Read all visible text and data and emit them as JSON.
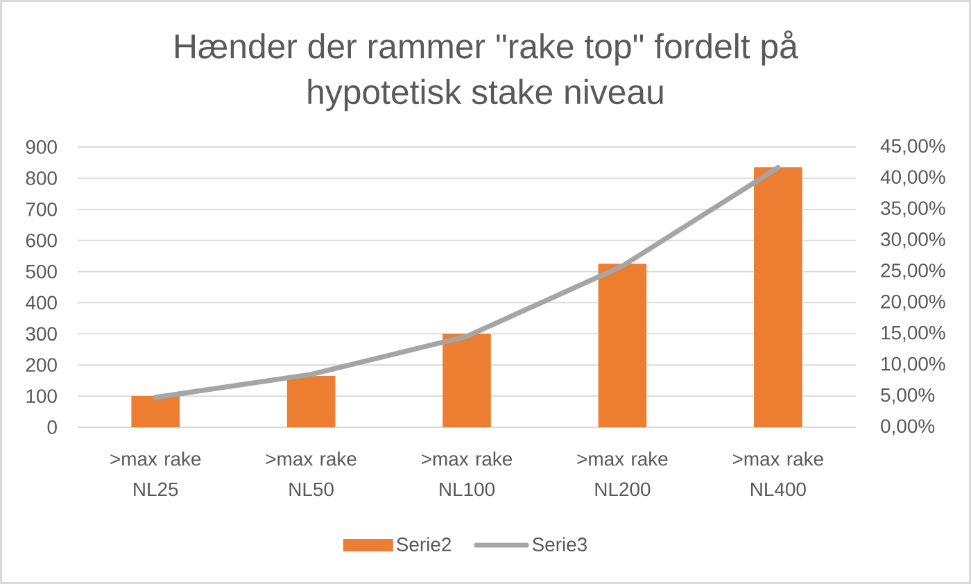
{
  "chart_data": {
    "type": "bar",
    "title": "Hænder der rammer \"rake top\" fordelt på hypotetisk stake niveau",
    "categories": [
      ">max rake NL25",
      ">max rake NL50",
      ">max rake NL100",
      ">max rake NL200",
      ">max rake NL400"
    ],
    "series": [
      {
        "name": "Serie2",
        "color": "#ed7d31",
        "values": [
          100,
          165,
          300,
          525,
          835
        ]
      },
      {
        "name": "Serie3",
        "type": "line",
        "axis": "y2",
        "color": "#a5a5a5",
        "values": [
          4.8,
          8.5,
          14.6,
          25.9,
          41.7
        ]
      }
    ],
    "ylim": [
      0,
      900
    ],
    "yticks": [
      0,
      100,
      200,
      300,
      400,
      500,
      600,
      700,
      800,
      900
    ],
    "y2lim": [
      0,
      45
    ],
    "y2ticks": [
      {
        "value": 0,
        "label": "0,00%"
      },
      {
        "value": 5,
        "label": "5,00%"
      },
      {
        "value": 10,
        "label": "10,00%"
      },
      {
        "value": 15,
        "label": "15,00%"
      },
      {
        "value": 20,
        "label": "20,00%"
      },
      {
        "value": 25,
        "label": "25,00%"
      },
      {
        "value": 30,
        "label": "30,00%"
      },
      {
        "value": 35,
        "label": "35,00%"
      },
      {
        "value": 40,
        "label": "40,00%"
      },
      {
        "value": 45,
        "label": "45,00%"
      }
    ],
    "grid": "y",
    "legend": "bottom",
    "line_style": "solid"
  }
}
